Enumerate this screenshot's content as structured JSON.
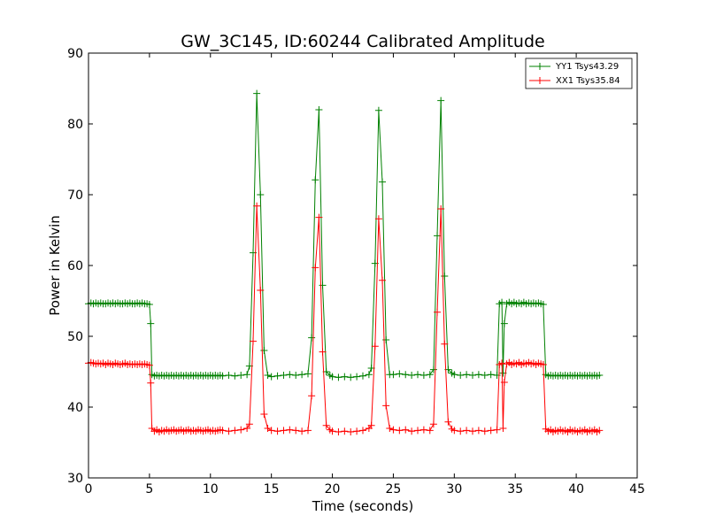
{
  "chart_data": {
    "type": "line",
    "title": "GW_3C145, ID:60244 Calibrated Amplitude",
    "xlabel": "Time (seconds)",
    "ylabel": "Power in Kelvin",
    "xlim": [
      0,
      45
    ],
    "ylim": [
      30,
      90
    ],
    "xticks": [
      0,
      5,
      10,
      15,
      20,
      25,
      30,
      35,
      40,
      45
    ],
    "yticks": [
      30,
      40,
      50,
      60,
      70,
      80,
      90
    ],
    "grid": false,
    "legend_position": "top-right",
    "series": [
      {
        "name": "YY1 Tsys43.29",
        "color": "#008000",
        "marker": "+",
        "points": [
          [
            0.0,
            54.6
          ],
          [
            0.2,
            54.7
          ],
          [
            0.4,
            54.6
          ],
          [
            0.6,
            54.7
          ],
          [
            0.8,
            54.6
          ],
          [
            1.0,
            54.7
          ],
          [
            1.2,
            54.6
          ],
          [
            1.4,
            54.6
          ],
          [
            1.6,
            54.7
          ],
          [
            1.8,
            54.6
          ],
          [
            2.0,
            54.7
          ],
          [
            2.2,
            54.6
          ],
          [
            2.4,
            54.7
          ],
          [
            2.6,
            54.6
          ],
          [
            2.8,
            54.6
          ],
          [
            3.0,
            54.7
          ],
          [
            3.2,
            54.6
          ],
          [
            3.4,
            54.7
          ],
          [
            3.6,
            54.6
          ],
          [
            3.8,
            54.6
          ],
          [
            4.0,
            54.7
          ],
          [
            4.2,
            54.6
          ],
          [
            4.4,
            54.7
          ],
          [
            4.6,
            54.6
          ],
          [
            4.8,
            54.6
          ],
          [
            5.0,
            54.5
          ],
          [
            5.1,
            51.8
          ],
          [
            5.2,
            44.6
          ],
          [
            5.4,
            44.4
          ],
          [
            5.6,
            44.5
          ],
          [
            5.8,
            44.4
          ],
          [
            6.0,
            44.5
          ],
          [
            6.2,
            44.4
          ],
          [
            6.4,
            44.5
          ],
          [
            6.6,
            44.4
          ],
          [
            6.8,
            44.5
          ],
          [
            7.0,
            44.4
          ],
          [
            7.2,
            44.5
          ],
          [
            7.4,
            44.4
          ],
          [
            7.6,
            44.5
          ],
          [
            7.8,
            44.4
          ],
          [
            8.0,
            44.5
          ],
          [
            8.2,
            44.4
          ],
          [
            8.4,
            44.5
          ],
          [
            8.6,
            44.4
          ],
          [
            8.8,
            44.5
          ],
          [
            9.0,
            44.4
          ],
          [
            9.2,
            44.5
          ],
          [
            9.4,
            44.4
          ],
          [
            9.6,
            44.5
          ],
          [
            9.8,
            44.4
          ],
          [
            10.0,
            44.5
          ],
          [
            10.2,
            44.4
          ],
          [
            10.4,
            44.5
          ],
          [
            10.6,
            44.4
          ],
          [
            10.8,
            44.5
          ],
          [
            11.0,
            44.4
          ],
          [
            11.5,
            44.5
          ],
          [
            12.0,
            44.4
          ],
          [
            12.5,
            44.5
          ],
          [
            13.0,
            44.6
          ],
          [
            13.2,
            45.8
          ],
          [
            13.5,
            61.8
          ],
          [
            13.8,
            84.3
          ],
          [
            14.1,
            70.0
          ],
          [
            14.4,
            48.0
          ],
          [
            14.7,
            44.5
          ],
          [
            15.0,
            44.3
          ],
          [
            15.5,
            44.4
          ],
          [
            16.0,
            44.5
          ],
          [
            16.5,
            44.6
          ],
          [
            17.0,
            44.5
          ],
          [
            17.5,
            44.6
          ],
          [
            18.0,
            44.7
          ],
          [
            18.3,
            49.8
          ],
          [
            18.6,
            72.1
          ],
          [
            18.9,
            82.0
          ],
          [
            19.2,
            57.2
          ],
          [
            19.5,
            45.0
          ],
          [
            19.8,
            44.5
          ],
          [
            20.0,
            44.3
          ],
          [
            20.5,
            44.2
          ],
          [
            21.0,
            44.3
          ],
          [
            21.5,
            44.2
          ],
          [
            22.0,
            44.3
          ],
          [
            22.5,
            44.4
          ],
          [
            23.0,
            44.6
          ],
          [
            23.2,
            45.5
          ],
          [
            23.5,
            60.3
          ],
          [
            23.8,
            81.9
          ],
          [
            24.1,
            71.8
          ],
          [
            24.4,
            49.5
          ],
          [
            24.7,
            44.6
          ],
          [
            25.0,
            44.6
          ],
          [
            25.5,
            44.7
          ],
          [
            26.0,
            44.6
          ],
          [
            26.5,
            44.5
          ],
          [
            27.0,
            44.6
          ],
          [
            27.5,
            44.5
          ],
          [
            28.0,
            44.6
          ],
          [
            28.3,
            45.3
          ],
          [
            28.6,
            64.2
          ],
          [
            28.9,
            83.3
          ],
          [
            29.2,
            58.5
          ],
          [
            29.5,
            45.3
          ],
          [
            29.8,
            44.8
          ],
          [
            30.0,
            44.6
          ],
          [
            30.5,
            44.5
          ],
          [
            31.0,
            44.6
          ],
          [
            31.5,
            44.5
          ],
          [
            32.0,
            44.6
          ],
          [
            32.5,
            44.5
          ],
          [
            33.0,
            44.6
          ],
          [
            33.5,
            44.5
          ],
          [
            33.7,
            54.6
          ],
          [
            33.9,
            54.8
          ],
          [
            34.0,
            44.8
          ],
          [
            34.1,
            51.8
          ],
          [
            34.3,
            54.6
          ],
          [
            34.5,
            54.8
          ],
          [
            34.7,
            54.6
          ],
          [
            34.9,
            54.8
          ],
          [
            35.1,
            54.6
          ],
          [
            35.3,
            54.7
          ],
          [
            35.5,
            54.6
          ],
          [
            35.7,
            54.8
          ],
          [
            35.9,
            54.6
          ],
          [
            36.1,
            54.7
          ],
          [
            36.3,
            54.6
          ],
          [
            36.5,
            54.7
          ],
          [
            36.7,
            54.6
          ],
          [
            36.9,
            54.7
          ],
          [
            37.1,
            54.6
          ],
          [
            37.3,
            54.5
          ],
          [
            37.5,
            44.6
          ],
          [
            37.7,
            44.4
          ],
          [
            37.9,
            44.5
          ],
          [
            38.1,
            44.4
          ],
          [
            38.3,
            44.5
          ],
          [
            38.5,
            44.4
          ],
          [
            38.7,
            44.5
          ],
          [
            38.9,
            44.4
          ],
          [
            39.1,
            44.5
          ],
          [
            39.3,
            44.4
          ],
          [
            39.5,
            44.5
          ],
          [
            39.7,
            44.4
          ],
          [
            39.9,
            44.5
          ],
          [
            40.1,
            44.4
          ],
          [
            40.3,
            44.5
          ],
          [
            40.5,
            44.4
          ],
          [
            40.7,
            44.5
          ],
          [
            40.9,
            44.4
          ],
          [
            41.1,
            44.5
          ],
          [
            41.3,
            44.4
          ],
          [
            41.5,
            44.5
          ],
          [
            41.7,
            44.4
          ],
          [
            41.9,
            44.5
          ]
        ]
      },
      {
        "name": "XX1 Tsys35.84",
        "color": "#ff0000",
        "marker": "+",
        "points": [
          [
            0.0,
            46.2
          ],
          [
            0.2,
            46.3
          ],
          [
            0.4,
            46.2
          ],
          [
            0.6,
            46.1
          ],
          [
            0.8,
            46.2
          ],
          [
            1.0,
            46.1
          ],
          [
            1.2,
            46.2
          ],
          [
            1.4,
            46.0
          ],
          [
            1.6,
            46.2
          ],
          [
            1.8,
            46.1
          ],
          [
            2.0,
            46.0
          ],
          [
            2.2,
            46.2
          ],
          [
            2.4,
            46.1
          ],
          [
            2.6,
            46.0
          ],
          [
            2.8,
            46.1
          ],
          [
            3.0,
            46.2
          ],
          [
            3.2,
            46.0
          ],
          [
            3.4,
            46.1
          ],
          [
            3.6,
            46.0
          ],
          [
            3.8,
            46.1
          ],
          [
            4.0,
            46.0
          ],
          [
            4.2,
            46.1
          ],
          [
            4.4,
            46.0
          ],
          [
            4.6,
            46.1
          ],
          [
            4.8,
            46.0
          ],
          [
            5.0,
            45.9
          ],
          [
            5.1,
            43.4
          ],
          [
            5.2,
            37.0
          ],
          [
            5.4,
            36.6
          ],
          [
            5.6,
            36.8
          ],
          [
            5.8,
            36.5
          ],
          [
            6.0,
            36.7
          ],
          [
            6.2,
            36.6
          ],
          [
            6.4,
            36.8
          ],
          [
            6.6,
            36.6
          ],
          [
            6.8,
            36.7
          ],
          [
            7.0,
            36.8
          ],
          [
            7.2,
            36.6
          ],
          [
            7.4,
            36.7
          ],
          [
            7.6,
            36.8
          ],
          [
            7.8,
            36.6
          ],
          [
            8.0,
            36.7
          ],
          [
            8.2,
            36.8
          ],
          [
            8.4,
            36.6
          ],
          [
            8.6,
            36.7
          ],
          [
            8.8,
            36.6
          ],
          [
            9.0,
            36.8
          ],
          [
            9.2,
            36.7
          ],
          [
            9.4,
            36.6
          ],
          [
            9.6,
            36.7
          ],
          [
            9.8,
            36.8
          ],
          [
            10.0,
            36.6
          ],
          [
            10.2,
            36.7
          ],
          [
            10.4,
            36.6
          ],
          [
            10.6,
            36.7
          ],
          [
            10.8,
            36.8
          ],
          [
            11.0,
            36.7
          ],
          [
            11.5,
            36.6
          ],
          [
            12.0,
            36.7
          ],
          [
            12.5,
            36.8
          ],
          [
            13.0,
            37.0
          ],
          [
            13.2,
            37.6
          ],
          [
            13.5,
            49.3
          ],
          [
            13.8,
            68.4
          ],
          [
            14.1,
            56.5
          ],
          [
            14.4,
            39.0
          ],
          [
            14.7,
            37.0
          ],
          [
            15.0,
            36.7
          ],
          [
            15.5,
            36.6
          ],
          [
            16.0,
            36.7
          ],
          [
            16.5,
            36.8
          ],
          [
            17.0,
            36.7
          ],
          [
            17.5,
            36.6
          ],
          [
            18.0,
            36.7
          ],
          [
            18.3,
            41.6
          ],
          [
            18.6,
            59.7
          ],
          [
            18.9,
            66.8
          ],
          [
            19.2,
            47.8
          ],
          [
            19.5,
            37.4
          ],
          [
            19.8,
            36.8
          ],
          [
            20.0,
            36.6
          ],
          [
            20.5,
            36.5
          ],
          [
            21.0,
            36.6
          ],
          [
            21.5,
            36.5
          ],
          [
            22.0,
            36.6
          ],
          [
            22.5,
            36.7
          ],
          [
            23.0,
            37.0
          ],
          [
            23.2,
            37.4
          ],
          [
            23.5,
            48.6
          ],
          [
            23.8,
            66.6
          ],
          [
            24.1,
            57.9
          ],
          [
            24.4,
            40.2
          ],
          [
            24.7,
            37.0
          ],
          [
            25.0,
            36.8
          ],
          [
            25.5,
            36.7
          ],
          [
            26.0,
            36.8
          ],
          [
            26.5,
            36.6
          ],
          [
            27.0,
            36.7
          ],
          [
            27.5,
            36.8
          ],
          [
            28.0,
            36.7
          ],
          [
            28.3,
            37.6
          ],
          [
            28.6,
            53.4
          ],
          [
            28.9,
            68.0
          ],
          [
            29.2,
            48.9
          ],
          [
            29.5,
            37.9
          ],
          [
            29.8,
            36.9
          ],
          [
            30.0,
            36.7
          ],
          [
            30.5,
            36.6
          ],
          [
            31.0,
            36.7
          ],
          [
            31.5,
            36.6
          ],
          [
            32.0,
            36.7
          ],
          [
            32.5,
            36.6
          ],
          [
            33.0,
            36.7
          ],
          [
            33.5,
            36.8
          ],
          [
            33.7,
            46.0
          ],
          [
            33.9,
            46.2
          ],
          [
            34.0,
            37.0
          ],
          [
            34.1,
            43.5
          ],
          [
            34.3,
            46.1
          ],
          [
            34.5,
            46.3
          ],
          [
            34.7,
            46.0
          ],
          [
            34.9,
            46.2
          ],
          [
            35.1,
            46.1
          ],
          [
            35.3,
            46.3
          ],
          [
            35.5,
            46.0
          ],
          [
            35.7,
            46.2
          ],
          [
            35.9,
            46.1
          ],
          [
            36.1,
            46.3
          ],
          [
            36.3,
            46.1
          ],
          [
            36.5,
            46.2
          ],
          [
            36.7,
            46.0
          ],
          [
            36.9,
            46.2
          ],
          [
            37.1,
            46.1
          ],
          [
            37.3,
            46.0
          ],
          [
            37.5,
            36.9
          ],
          [
            37.7,
            36.6
          ],
          [
            37.9,
            36.8
          ],
          [
            38.1,
            36.5
          ],
          [
            38.3,
            36.7
          ],
          [
            38.5,
            36.6
          ],
          [
            38.7,
            36.8
          ],
          [
            38.9,
            36.6
          ],
          [
            39.1,
            36.7
          ],
          [
            39.3,
            36.5
          ],
          [
            39.5,
            36.8
          ],
          [
            39.7,
            36.6
          ],
          [
            39.9,
            36.7
          ],
          [
            40.1,
            36.5
          ],
          [
            40.3,
            36.7
          ],
          [
            40.5,
            36.6
          ],
          [
            40.7,
            36.8
          ],
          [
            40.9,
            36.5
          ],
          [
            41.1,
            36.7
          ],
          [
            41.3,
            36.6
          ],
          [
            41.5,
            36.8
          ],
          [
            41.7,
            36.5
          ],
          [
            41.9,
            36.7
          ]
        ]
      }
    ]
  }
}
